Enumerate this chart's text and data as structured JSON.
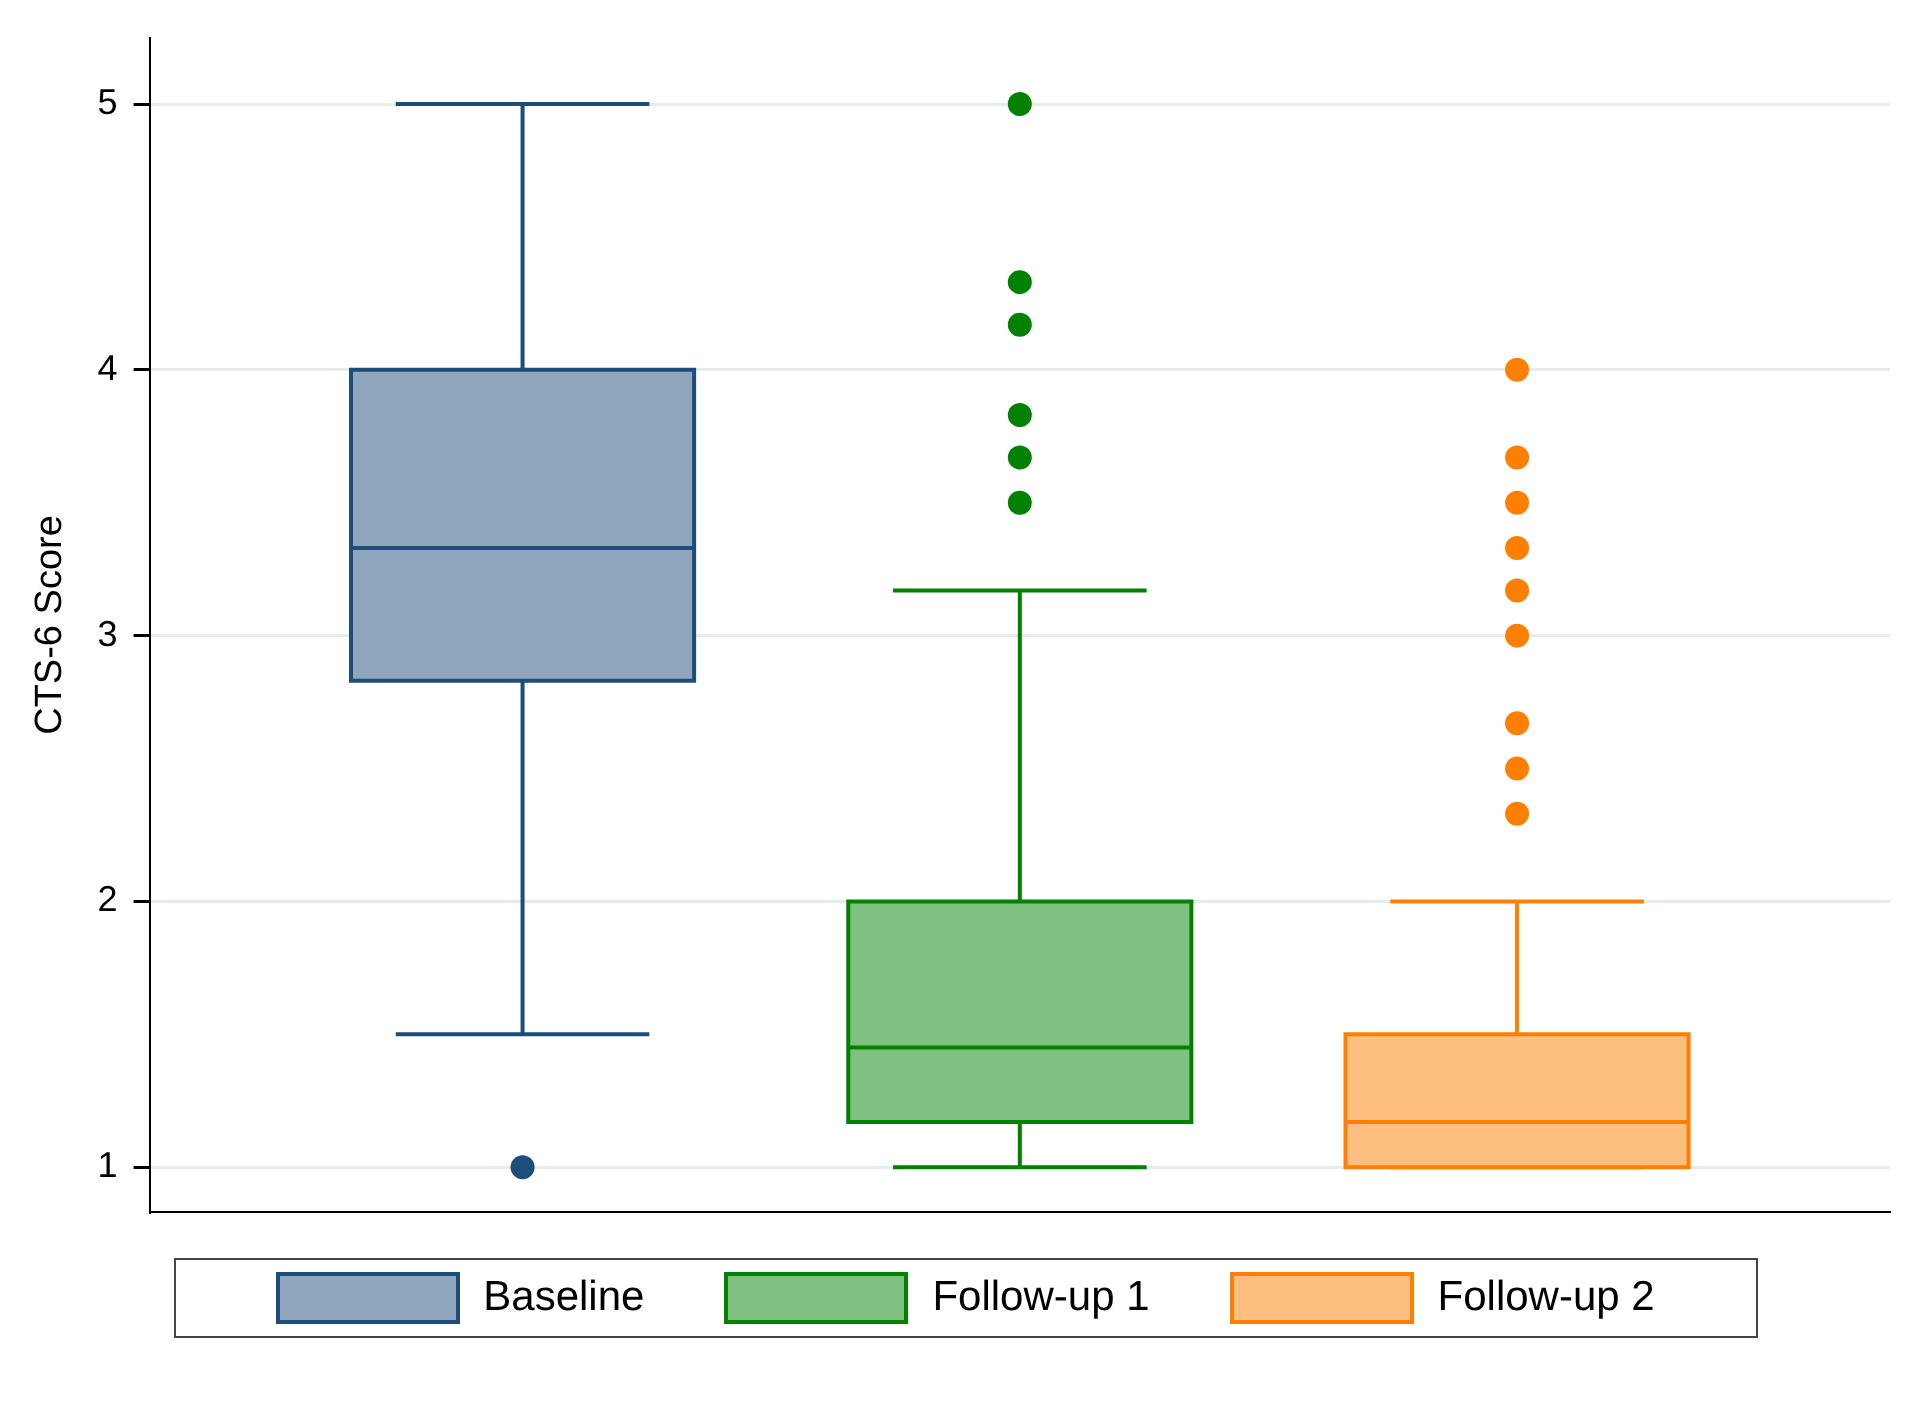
{
  "chart_data": {
    "type": "box",
    "ylabel": "CTS-6 Score",
    "categories": [
      null
    ],
    "series": [
      {
        "name": "Baseline",
        "color": "#8fa6bc",
        "boxes": [
          {
            "low": 1.5,
            "q1": 2.83,
            "median": 3.33,
            "q3": 4,
            "high": 5,
            "outliers": [
              1
            ]
          }
        ]
      },
      {
        "name": "Follow-up 1",
        "color": "#80c080",
        "boxes": [
          {
            "low": 1,
            "q1": 1.17,
            "median": 1.45,
            "q3": 2,
            "high": 3.17,
            "outliers": [
              3.5,
              3.67,
              3.83,
              4.17,
              4.33,
              5
            ]
          }
        ]
      },
      {
        "name": "Follow-up 2",
        "color": "#ffbf80",
        "boxes": [
          {
            "low": 1,
            "q1": 1,
            "median": 1.17,
            "q3": 1.5,
            "high": 2,
            "outliers": [
              2.33,
              2.5,
              2.67,
              3,
              3.17,
              3.33,
              3.5,
              3.67,
              4
            ]
          }
        ]
      }
    ],
    "ylim": [
      0.83,
      5.25
    ],
    "yticks": [
      1,
      2,
      3,
      4,
      5
    ],
    "grid": "y",
    "legend": "bottom"
  }
}
